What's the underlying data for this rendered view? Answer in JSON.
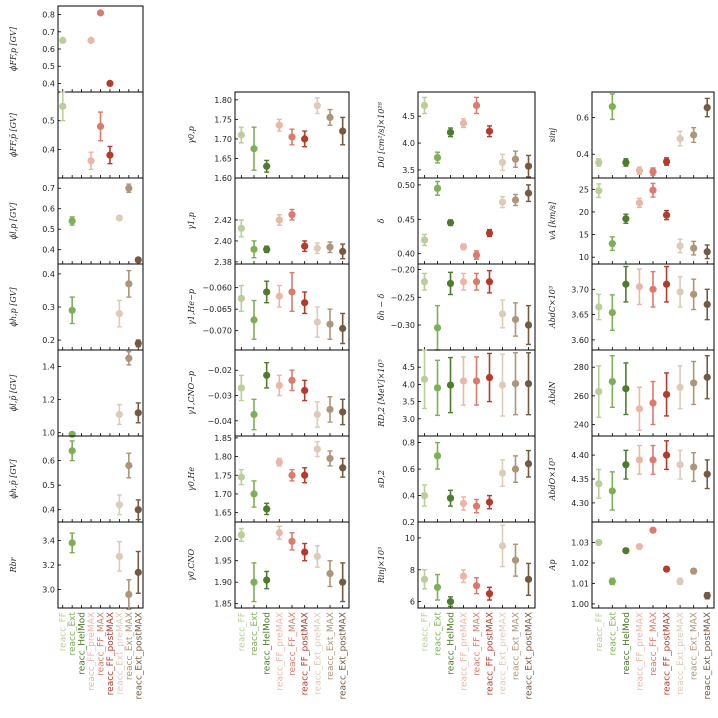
{
  "series_names": [
    "reacc_FF",
    "reacc_Ext",
    "reacc_HelMod",
    "reacc_FF_preMAX",
    "reacc_FF_MAX",
    "reacc_FF_postMAX",
    "reacc_Ext_preMAX",
    "reacc_Ext_MAX",
    "reacc_Ext_postMAX"
  ],
  "series_colors": [
    "#b9cf97",
    "#7eae57",
    "#4e7b2e",
    "#eab7a7",
    "#dc7a6b",
    "#b33b2c",
    "#dccbb9",
    "#ad9579",
    "#745a43"
  ],
  "chart_data": [
    {
      "type": "scatter",
      "ylabel": "ϕFF,p [GV]",
      "ylim": [
        0.35,
        0.85
      ],
      "ticks": [
        0.4,
        0.5,
        0.6,
        0.7,
        0.8
      ],
      "ticklabels": [
        "0.4",
        "0.5",
        "0.6",
        "0.7",
        "0.8"
      ],
      "values": [
        0.65,
        null,
        null,
        0.65,
        0.81,
        0.4,
        null,
        null,
        null
      ],
      "err": [
        0,
        null,
        null,
        0,
        0,
        0,
        null,
        null,
        null
      ]
    },
    {
      "type": "scatter",
      "ylabel": "ϕFF,p̄ [GV]",
      "ylim": [
        0.3,
        0.6
      ],
      "ticks": [
        0.4,
        0.5
      ],
      "ticklabels": [
        "0.4",
        "0.5"
      ],
      "values": [
        0.55,
        null,
        null,
        0.36,
        0.48,
        0.38,
        null,
        null,
        null
      ],
      "err": [
        0.05,
        null,
        null,
        0.03,
        0.05,
        0.03,
        null,
        null,
        null
      ]
    },
    {
      "type": "scatter",
      "ylabel": "ϕl,p [GV]",
      "ylim": [
        0.33,
        0.75
      ],
      "ticks": [
        0.4,
        0.5,
        0.6,
        0.7
      ],
      "ticklabels": [
        "0.4",
        "0.5",
        "0.6",
        "0.7"
      ],
      "values": [
        null,
        0.54,
        null,
        null,
        null,
        null,
        0.555,
        0.7,
        0.35
      ],
      "err": [
        null,
        0.02,
        null,
        null,
        null,
        null,
        0.01,
        0.02,
        0.01
      ]
    },
    {
      "type": "scatter",
      "ylabel": "ϕh,p [GV]",
      "ylim": [
        0.17,
        0.43
      ],
      "ticks": [
        0.2,
        0.3,
        0.4
      ],
      "ticklabels": [
        "0.2",
        "0.3",
        "0.4"
      ],
      "values": [
        null,
        0.29,
        null,
        null,
        null,
        null,
        0.28,
        0.37,
        0.19
      ],
      "err": [
        null,
        0.04,
        null,
        null,
        null,
        null,
        0.04,
        0.04,
        0.01
      ]
    },
    {
      "type": "scatter",
      "ylabel": "ϕl,p̄ [GV]",
      "ylim": [
        0.98,
        1.5
      ],
      "ticks": [
        1.0,
        1.2,
        1.4
      ],
      "ticklabels": [
        "1.0",
        "1.2",
        "1.4"
      ],
      "values": [
        null,
        0.99,
        null,
        null,
        null,
        null,
        1.11,
        1.45,
        1.12
      ],
      "err": [
        null,
        0.01,
        null,
        null,
        null,
        null,
        0.06,
        0.04,
        0.06
      ]
    },
    {
      "type": "scatter",
      "ylabel": "ϕh,p̄ [GV]",
      "ylim": [
        0.35,
        0.7
      ],
      "ticks": [
        0.4,
        0.5,
        0.6
      ],
      "ticklabels": [
        "0.4",
        "0.5",
        "0.6"
      ],
      "values": [
        null,
        0.64,
        null,
        null,
        null,
        null,
        0.42,
        0.58,
        0.4
      ],
      "err": [
        null,
        0.04,
        null,
        null,
        null,
        null,
        0.04,
        0.05,
        0.04
      ]
    },
    {
      "type": "scatter",
      "ylabel": "Rbr",
      "ylim": [
        2.85,
        3.55
      ],
      "ticks": [
        3.0,
        3.2,
        3.4
      ],
      "ticklabels": [
        "3.0",
        "3.2",
        "3.4"
      ],
      "values": [
        null,
        3.38,
        null,
        null,
        null,
        null,
        3.27,
        2.96,
        3.14
      ],
      "err": [
        null,
        0.08,
        null,
        null,
        null,
        null,
        0.12,
        0.12,
        0.17
      ]
    },
    {
      "type": "scatter",
      "ylabel": "γ0,p",
      "ylim": [
        1.6,
        1.82
      ],
      "ticks": [
        1.6,
        1.65,
        1.7,
        1.75,
        1.8
      ],
      "ticklabels": [
        "1.60",
        "1.65",
        "1.70",
        "1.75",
        "1.80"
      ],
      "values": [
        1.71,
        1.675,
        1.63,
        1.735,
        1.705,
        1.7,
        1.785,
        1.755,
        1.72
      ],
      "err": [
        0.02,
        0.055,
        0.015,
        0.015,
        0.02,
        0.02,
        0.02,
        0.02,
        0.035
      ]
    },
    {
      "type": "scatter",
      "ylabel": "γ1,p",
      "ylim": [
        2.378,
        2.46
      ],
      "ticks": [
        2.38,
        2.4,
        2.42
      ],
      "ticklabels": [
        "2.38",
        "2.40",
        "2.42"
      ],
      "values": [
        2.412,
        2.392,
        2.392,
        2.42,
        2.425,
        2.395,
        2.393,
        2.394,
        2.39
      ],
      "err": [
        0.008,
        0.008,
        0.003,
        0.005,
        0.005,
        0.005,
        0.005,
        0.005,
        0.007
      ]
    },
    {
      "type": "scatter",
      "ylabel": "γ1,He−p",
      "ylim": [
        -0.0745,
        -0.0545
      ],
      "ticks": [
        -0.07,
        -0.065,
        -0.06
      ],
      "ticklabels": [
        "−0.070",
        "−0.065",
        "−0.060"
      ],
      "values": [
        -0.0625,
        -0.0675,
        -0.061,
        -0.062,
        -0.061,
        -0.0635,
        -0.068,
        -0.0685,
        -0.0695
      ],
      "err": [
        0.003,
        0.0045,
        0.0025,
        0.0025,
        0.0045,
        0.0025,
        0.0035,
        0.0035,
        0.0035
      ]
    },
    {
      "type": "scatter",
      "ylabel": "γ1,CNO−p",
      "ylim": [
        -0.046,
        -0.012
      ],
      "ticks": [
        -0.04,
        -0.03,
        -0.02
      ],
      "ticklabels": [
        "−0.04",
        "−0.03",
        "−0.02"
      ],
      "values": [
        -0.027,
        -0.0375,
        -0.022,
        -0.026,
        -0.024,
        -0.028,
        -0.0375,
        -0.0355,
        -0.0365
      ],
      "err": [
        0.005,
        0.006,
        0.005,
        0.004,
        0.004,
        0.004,
        0.005,
        0.005,
        0.005
      ]
    },
    {
      "type": "scatter",
      "ylabel": "γ0,He",
      "ylim": [
        1.625,
        1.855
      ],
      "ticks": [
        1.65,
        1.7,
        1.75,
        1.8,
        1.85
      ],
      "ticklabels": [
        "1.65",
        "1.70",
        "1.75",
        "1.80",
        "1.85"
      ],
      "values": [
        1.745,
        1.7,
        1.66,
        1.785,
        1.75,
        1.75,
        1.82,
        1.795,
        1.77
      ],
      "err": [
        0.02,
        0.035,
        0.015,
        0.01,
        0.015,
        0.02,
        0.02,
        0.02,
        0.025
      ]
    },
    {
      "type": "scatter",
      "ylabel": "γ0,CNO",
      "ylim": [
        1.84,
        2.04
      ],
      "ticks": [
        1.85,
        1.9,
        1.95,
        2.0
      ],
      "ticklabels": [
        "1.85",
        "1.90",
        "1.95",
        "2.00"
      ],
      "values": [
        2.01,
        1.9,
        1.905,
        2.015,
        1.995,
        1.97,
        1.96,
        1.92,
        1.9
      ],
      "err": [
        0.015,
        0.045,
        0.02,
        0.015,
        0.02,
        0.02,
        0.025,
        0.03,
        0.045
      ]
    },
    {
      "type": "scatter",
      "ylabel": "D0 [cm²/s]×10²⁸",
      "ylim": [
        3.35,
        4.95
      ],
      "ticks": [
        3.5,
        4.0,
        4.5
      ],
      "ticklabels": [
        "3.5",
        "4.0",
        "4.5"
      ],
      "values": [
        4.7,
        3.73,
        4.2,
        4.37,
        4.7,
        4.22,
        3.64,
        3.7,
        3.57
      ],
      "err": [
        0.15,
        0.1,
        0.08,
        0.08,
        0.15,
        0.1,
        0.15,
        0.15,
        0.2
      ]
    },
    {
      "type": "scatter",
      "ylabel": "δ",
      "ylim": [
        0.385,
        0.51
      ],
      "ticks": [
        0.4,
        0.45,
        0.5
      ],
      "ticklabels": [
        "0.40",
        "0.45",
        "0.50"
      ],
      "values": [
        0.42,
        0.495,
        0.445,
        0.41,
        0.398,
        0.43,
        0.475,
        0.478,
        0.488
      ],
      "err": [
        0.008,
        0.01,
        0.004,
        0.004,
        0.006,
        0.005,
        0.008,
        0.008,
        0.012
      ]
    },
    {
      "type": "scatter",
      "ylabel": "δh − δ",
      "ylim": [
        -0.345,
        -0.19
      ],
      "ticks": [
        -0.3,
        -0.25,
        -0.2
      ],
      "ticklabels": [
        "−0.30",
        "−0.25",
        "−0.20"
      ],
      "values": [
        -0.222,
        -0.305,
        -0.225,
        -0.222,
        -0.222,
        -0.222,
        -0.28,
        -0.29,
        -0.3
      ],
      "err": [
        0.015,
        0.04,
        0.02,
        0.015,
        0.015,
        0.02,
        0.025,
        0.03,
        0.035
      ]
    },
    {
      "type": "scatter",
      "ylabel": "RD,2 [MeV]×10⁵",
      "ylim": [
        2.5,
        5.0
      ],
      "ticks": [
        3.0,
        3.5,
        4.0,
        4.5
      ],
      "ticklabels": [
        "3.0",
        "3.5",
        "4.0",
        "4.5"
      ],
      "values": [
        4.15,
        3.9,
        3.98,
        4.1,
        4.1,
        4.2,
        3.98,
        4.02,
        4.02
      ],
      "err": [
        0.85,
        0.8,
        0.8,
        0.7,
        0.7,
        0.7,
        0.9,
        0.9,
        0.9
      ]
    },
    {
      "type": "scatter",
      "ylabel": "sD,2",
      "ylim": [
        0.2,
        0.85
      ],
      "ticks": [
        0.2,
        0.4,
        0.6,
        0.8
      ],
      "ticklabels": [
        "0.2",
        "0.4",
        "0.6",
        "0.8"
      ],
      "values": [
        0.4,
        0.7,
        0.38,
        0.34,
        0.32,
        0.35,
        0.57,
        0.6,
        0.64
      ],
      "err": [
        0.08,
        0.1,
        0.06,
        0.05,
        0.05,
        0.05,
        0.1,
        0.1,
        0.1
      ]
    },
    {
      "type": "scatter",
      "ylabel": "Rinj×10³",
      "ylim": [
        5.6,
        11.0
      ],
      "ticks": [
        6,
        8,
        10
      ],
      "ticklabels": [
        "6",
        "8",
        "10"
      ],
      "values": [
        7.4,
        6.9,
        6.0,
        7.6,
        7.0,
        6.5,
        9.5,
        8.6,
        7.4
      ],
      "err": [
        0.6,
        0.8,
        0.3,
        0.4,
        0.5,
        0.4,
        1.3,
        1.0,
        1.0
      ]
    },
    {
      "type": "scatter",
      "ylabel": "sinj",
      "ylim": [
        0.27,
        0.74
      ],
      "ticks": [
        0.4,
        0.6
      ],
      "ticklabels": [
        "0.4",
        "0.6"
      ],
      "values": [
        0.355,
        0.66,
        0.355,
        0.31,
        0.305,
        0.36,
        0.485,
        0.505,
        0.655
      ],
      "err": [
        0.02,
        0.07,
        0.02,
        0.02,
        0.02,
        0.02,
        0.04,
        0.04,
        0.05
      ]
    },
    {
      "type": "scatter",
      "ylabel": "vA [km/s]",
      "ylim": [
        8.5,
        27.5
      ],
      "ticks": [
        10,
        15,
        20,
        25
      ],
      "ticklabels": [
        "10",
        "15",
        "20",
        "25"
      ],
      "values": [
        24.7,
        13.0,
        18.5,
        22.0,
        24.8,
        19.3,
        12.5,
        12.0,
        11.2
      ],
      "err": [
        1.5,
        1.5,
        1.0,
        1.0,
        1.5,
        1.0,
        1.5,
        1.5,
        1.5
      ]
    },
    {
      "type": "scatter",
      "ylabel": "AbdC×10³",
      "ylim": [
        3.58,
        3.75
      ],
      "ticks": [
        3.6,
        3.65,
        3.7
      ],
      "ticklabels": [
        "3.60",
        "3.65",
        "3.70"
      ],
      "values": [
        3.665,
        3.654,
        3.71,
        3.705,
        3.7,
        3.71,
        3.695,
        3.69,
        3.67
      ],
      "err": [
        0.025,
        0.035,
        0.035,
        0.035,
        0.035,
        0.035,
        0.03,
        0.03,
        0.03
      ]
    },
    {
      "type": "scatter",
      "ylabel": "AbdN",
      "ylim": [
        232,
        292
      ],
      "ticks": [
        240,
        260,
        280
      ],
      "ticklabels": [
        "240",
        "260",
        "280"
      ],
      "values": [
        263,
        270,
        265,
        251,
        255,
        261,
        266,
        269,
        273
      ],
      "err": [
        18,
        18,
        18,
        15,
        15,
        15,
        15,
        15,
        15
      ]
    },
    {
      "type": "scatter",
      "ylabel": "AbdO×10³",
      "ylim": [
        4.26,
        4.44
      ],
      "ticks": [
        4.3,
        4.35,
        4.4
      ],
      "ticklabels": [
        "4.30",
        "4.35",
        "4.40"
      ],
      "values": [
        4.34,
        4.325,
        4.38,
        4.39,
        4.39,
        4.4,
        4.38,
        4.375,
        4.36
      ],
      "err": [
        0.03,
        0.04,
        0.03,
        0.03,
        0.03,
        0.03,
        0.03,
        0.03,
        0.03
      ]
    },
    {
      "type": "scatter",
      "ylabel": "Ap",
      "ylim": [
        0.998,
        1.04
      ],
      "ticks": [
        1.0,
        1.01,
        1.02,
        1.03
      ],
      "ticklabels": [
        "1.00",
        "1.01",
        "1.02",
        "1.03"
      ],
      "values": [
        1.03,
        1.011,
        1.026,
        1.028,
        1.036,
        1.017,
        1.011,
        1.016,
        1.004
      ],
      "err": [
        0.001,
        0.0015,
        0.001,
        0.001,
        0.001,
        0.001,
        0.0015,
        0.0012,
        0.0015
      ]
    }
  ]
}
